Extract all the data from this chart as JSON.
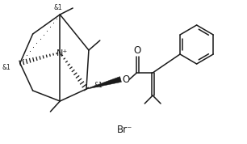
{
  "background": "#ffffff",
  "line_color": "#1a1a1a",
  "line_width": 1.1,
  "fig_width": 3.06,
  "fig_height": 1.78,
  "dpi": 100,
  "br_label": "Br⁻",
  "n_label": "N⁺",
  "o_label": "O",
  "o_ketone": "O",
  "stereo_label": "&1",
  "font_size": 6.5
}
